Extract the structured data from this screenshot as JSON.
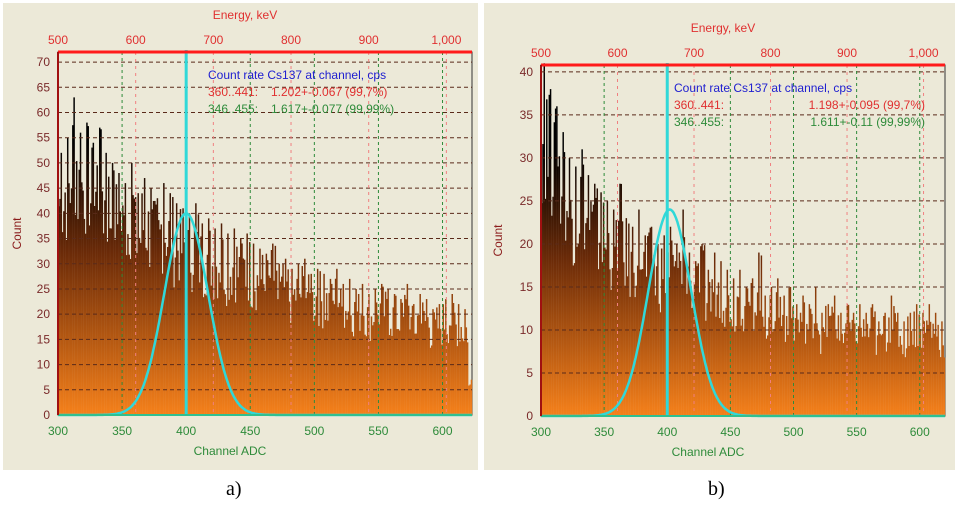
{
  "chart_data": [
    {
      "type": "bar",
      "caption": "a)",
      "xlabel": "Channel ADC",
      "ylabel": "Count",
      "x2label": "Energy, keV",
      "xlim": [
        300,
        623
      ],
      "ylim": [
        0,
        72
      ],
      "xticks": [
        "300",
        "350",
        "400",
        "450",
        "500",
        "550",
        "600"
      ],
      "yticks": [
        "0",
        "5",
        "10",
        "15",
        "20",
        "25",
        "30",
        "35",
        "40",
        "45",
        "50",
        "55",
        "60",
        "65",
        "70"
      ],
      "x2ticks": [
        "500",
        "600",
        "700",
        "800",
        "900",
        "1,000"
      ],
      "bin_start": 300,
      "bin_width": 5,
      "values": [
        52,
        55,
        63,
        56,
        58,
        54,
        57,
        52,
        50,
        48,
        46,
        50,
        44,
        47,
        45,
        43,
        46,
        44,
        42,
        41,
        40,
        42,
        38,
        39,
        37,
        38,
        36,
        37,
        35,
        36,
        34,
        33,
        32,
        34,
        30,
        31,
        29,
        30,
        31,
        28,
        29,
        28,
        27,
        29,
        26,
        27,
        25,
        26,
        24,
        25,
        26,
        25,
        24,
        23,
        26,
        22,
        24,
        23,
        21,
        22,
        23,
        24,
        22,
        21,
        7
      ],
      "marker_channel": 400,
      "fit": {
        "peak": 40,
        "center": 400,
        "sigma": 17
      },
      "legend": {
        "title": "Count rate Cs137 at channel, cps",
        "line1_range": "360..441:",
        "line1_value": "1.202+-0.067 (99,7%)",
        "line2_range": "346..455:",
        "line2_value": "1.617+-0.077 (99,99%)"
      },
      "grid": true
    },
    {
      "type": "bar",
      "caption": "b)",
      "xlabel": "Channel ADC",
      "ylabel": "Count",
      "x2label": "Energy, keV",
      "xlim": [
        300,
        620
      ],
      "ylim": [
        0,
        40.8
      ],
      "xticks": [
        "300",
        "350",
        "400",
        "450",
        "500",
        "550",
        "600"
      ],
      "yticks": [
        "0",
        "5",
        "10",
        "15",
        "20",
        "25",
        "30",
        "35",
        "40"
      ],
      "x2ticks": [
        "500",
        "600",
        "700",
        "800",
        "900",
        "1,000"
      ],
      "bin_start": 300,
      "bin_width": 5,
      "values": [
        41,
        38,
        36,
        33,
        30,
        29,
        31,
        28,
        27,
        26,
        25,
        24,
        27,
        23,
        22,
        24,
        21,
        22,
        20,
        21,
        22,
        20,
        24,
        19,
        18,
        20,
        17,
        19,
        18,
        17,
        16,
        17,
        15,
        16,
        19,
        14,
        15,
        16,
        14,
        15,
        13,
        14,
        13,
        15,
        12,
        13,
        14,
        12,
        13,
        12,
        13,
        12,
        13,
        11,
        12,
        14,
        12,
        11,
        12,
        13,
        12,
        13,
        12,
        11,
        3
      ],
      "marker_channel": 400,
      "fit": {
        "peak": 24,
        "center": 402,
        "sigma": 17
      },
      "legend": {
        "title": "Count rate Cs137 at channel, cps",
        "line1_range": "360..441:",
        "line1_value": "1.198+-0.095 (99,7%)",
        "line2_range": "346..455:",
        "line2_value": "1.611+-0.11 (99,99%)"
      },
      "grid": true
    }
  ],
  "colors": {
    "red": "#e03030",
    "green": "#2e8b3a",
    "blue": "#2020d0",
    "cyan": "#30d8d8",
    "fill_top": "#000000",
    "fill_bottom": "#f5801a"
  }
}
